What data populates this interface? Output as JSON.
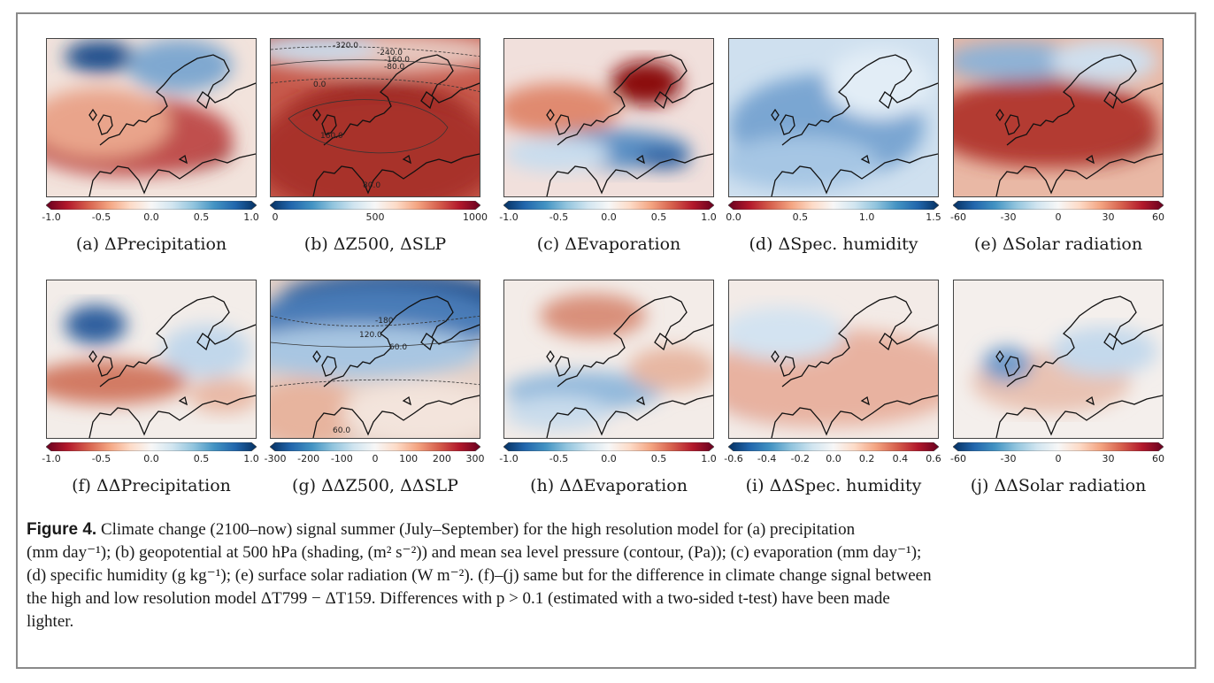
{
  "panels": [
    {
      "label": "(a) ΔPrecipitation",
      "ticks": [
        "-1.0",
        "-0.5",
        "0.0",
        "0.5",
        "1.0"
      ],
      "cmap": "brbu"
    },
    {
      "label": "(b) ΔZ500, ΔSLP",
      "ticks": [
        "0",
        "500",
        "1000"
      ],
      "cmap": "bured"
    },
    {
      "label": "(c) ΔEvaporation",
      "ticks": [
        "-1.0",
        "-0.5",
        "0.0",
        "0.5",
        "1.0"
      ],
      "cmap": "bured"
    },
    {
      "label": "(d) ΔSpec. humidity",
      "ticks": [
        "0.0",
        "0.5",
        "1.0",
        "1.5"
      ],
      "cmap": "redbu"
    },
    {
      "label": "(e) ΔSolar radiation",
      "ticks": [
        "-60",
        "-30",
        "0",
        "30",
        "60"
      ],
      "cmap": "bured"
    },
    {
      "label": "(f) ΔΔPrecipitation",
      "ticks": [
        "-1.0",
        "-0.5",
        "0.0",
        "0.5",
        "1.0"
      ],
      "cmap": "redbu"
    },
    {
      "label": "(g) ΔΔZ500, ΔΔSLP",
      "ticks": [
        "-300",
        "-200",
        "-100",
        "0",
        "100",
        "200",
        "300"
      ],
      "cmap": "bured"
    },
    {
      "label": "(h) ΔΔEvaporation",
      "ticks": [
        "-1.0",
        "-0.5",
        "0.0",
        "0.5",
        "1.0"
      ],
      "cmap": "bured"
    },
    {
      "label": "(i) ΔΔSpec. humidity",
      "ticks": [
        "-0.6",
        "-0.4",
        "-0.2",
        "0.0",
        "0.2",
        "0.4",
        "0.6"
      ],
      "cmap": "bured"
    },
    {
      "label": "(j) ΔΔSolar radiation",
      "ticks": [
        "-60",
        "-30",
        "0",
        "30",
        "60"
      ],
      "cmap": "bured"
    }
  ],
  "contour_labels": {
    "b": [
      "-320.0",
      "-240.0",
      "-160.0",
      "-80.0",
      "0.0",
      "160.0",
      "80.0"
    ],
    "g": [
      "-180",
      "120.0",
      "60.0",
      "60.0"
    ]
  },
  "caption": {
    "title": "Figure 4.",
    "line1": " Climate change (2100–now) signal summer (July–September) for the high resolution model for (a) precipitation",
    "line2": "(mm day⁻¹); (b) geopotential at 500 hPa (shading, (m² s⁻²)) and mean sea level pressure (contour, (Pa)); (c) evaporation (mm day⁻¹);",
    "line3": "(d) specific humidity (g kg⁻¹); (e) surface solar radiation (W m⁻²). (f)–(j) same but for the difference in climate change signal between",
    "line4": "the high and low resolution model ΔT799 − ΔT159. Differences with p > 0.1 (estimated with a two-sided t-test) have been made",
    "line5": "lighter."
  }
}
